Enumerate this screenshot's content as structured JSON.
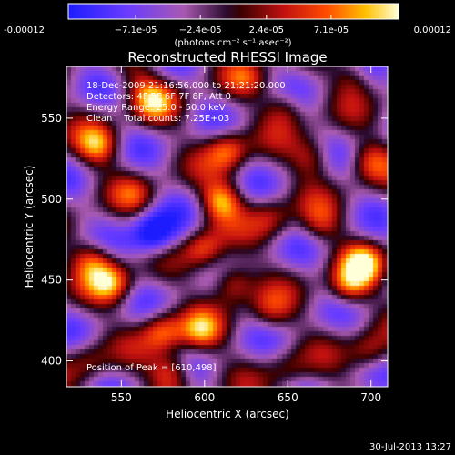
{
  "chart_data": {
    "type": "heatmap",
    "title": "Reconstructed RHESSI Image",
    "xlabel": "Heliocentric X (arcsec)",
    "ylabel": "Heliocentric Y (arcsec)",
    "xlim": [
      517,
      710
    ],
    "ylim": [
      384,
      582
    ],
    "x_ticks": [
      550,
      600,
      650,
      700
    ],
    "y_ticks": [
      400,
      450,
      500,
      550
    ],
    "colorbar": {
      "min": -0.00012,
      "max": 0.00012,
      "tick_labels": [
        "-0.00012",
        "−7.1e-05",
        "−2.4e-05",
        "2.4e-05",
        "7.1e-05",
        "0.00012"
      ],
      "tick_values": [
        -0.00012,
        -7.1e-05,
        -2.4e-05,
        2.4e-05,
        7.1e-05,
        0.00012
      ],
      "label": "(photons cm⁻² s⁻¹ asec⁻²)"
    },
    "annotations": [
      "18-Dec-2009 21:16:56.000 to 21:21:20.000",
      "Detectors: 4F 5F 6F 7F 8F, Att 0",
      "Energy Range: 25.0 - 50.0 keV",
      "Clean    Total counts: 7.25E+03"
    ],
    "peak_text": "Position of Peak = [610,498]",
    "peak": [
      610,
      498
    ],
    "sources": [
      {
        "x": 610,
        "y": 498,
        "value": 0.00012
      },
      {
        "x": 614,
        "y": 530,
        "value": 0.0001
      },
      {
        "x": 696,
        "y": 460,
        "value": 0.00011
      },
      {
        "x": 687,
        "y": 446,
        "value": 0.0001
      },
      {
        "x": 544,
        "y": 448,
        "value": 0.00011
      },
      {
        "x": 533,
        "y": 462,
        "value": 9e-05
      },
      {
        "x": 536,
        "y": 533,
        "value": 0.0001
      },
      {
        "x": 570,
        "y": 560,
        "value": 9e-05
      },
      {
        "x": 600,
        "y": 469,
        "value": 9e-05
      },
      {
        "x": 617,
        "y": 448,
        "value": 0.0001
      },
      {
        "x": 575,
        "y": 418,
        "value": 0.0001
      },
      {
        "x": 598,
        "y": 418,
        "value": 9e-05
      },
      {
        "x": 580,
        "y": 392,
        "value": 0.0001
      },
      {
        "x": 640,
        "y": 488,
        "value": 6e-05
      },
      {
        "x": 665,
        "y": 525,
        "value": 7e-05
      },
      {
        "x": 648,
        "y": 556,
        "value": 6e-05
      },
      {
        "x": 640,
        "y": 430,
        "value": 6e-05
      },
      {
        "x": 700,
        "y": 523,
        "value": 7e-05
      },
      {
        "x": 558,
        "y": 502,
        "value": 5e-05
      },
      {
        "x": 670,
        "y": 485,
        "value": 6e-05
      },
      {
        "x": 700,
        "y": 405,
        "value": 7e-05
      },
      {
        "x": 530,
        "y": 400,
        "value": 5e-05
      },
      {
        "x": 650,
        "y": 395,
        "value": 4e-05
      },
      {
        "x": 560,
        "y": 575,
        "value": 4e-05
      },
      {
        "x": 690,
        "y": 575,
        "value": 5e-05
      },
      {
        "x": 625,
        "y": 575,
        "value": 5e-05
      }
    ],
    "minimum": {
      "x": 570,
      "y": 478
    }
  },
  "footer": {
    "date": "30-Jul-2013 13:27"
  }
}
